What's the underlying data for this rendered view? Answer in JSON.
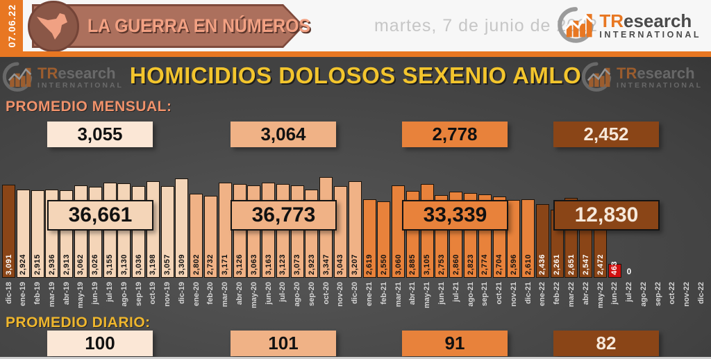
{
  "header": {
    "date_badge": "07.06.22",
    "banner_title": "LA GUERRA EN NÚMEROS",
    "date_text": "martes, 7 de junio de 2022",
    "logo": {
      "prefix": "TR",
      "suffix": "esearch",
      "subtitle": "INTERNATIONAL"
    }
  },
  "title": "HOMICIDIOS DOLOSOS SEXENIO AMLO",
  "sections": {
    "monthly_average": {
      "label": "PROMEDIO MENSUAL:",
      "boxes": [
        {
          "value": "3,055",
          "color": "cream_light"
        },
        {
          "value": "3,064",
          "color": "salmon"
        },
        {
          "value": "2,778",
          "color": "orange"
        },
        {
          "value": "2,452",
          "color": "brown"
        }
      ]
    },
    "period_totals": {
      "boxes": [
        {
          "value": "36,661",
          "color": "cream"
        },
        {
          "value": "36,773",
          "color": "salmon"
        },
        {
          "value": "33,339",
          "color": "orange"
        },
        {
          "value": "12,830",
          "color": "brown"
        }
      ]
    },
    "daily_average": {
      "label": "PROMEDIO DIARIO:",
      "boxes": [
        {
          "value": "100",
          "color": "cream_light"
        },
        {
          "value": "101",
          "color": "salmon"
        },
        {
          "value": "91",
          "color": "orange"
        },
        {
          "value": "82",
          "color": "brown"
        }
      ]
    }
  },
  "chart_data": {
    "type": "bar",
    "title": "HOMICIDIOS DOLOSOS SEXENIO AMLO",
    "ylim": [
      0,
      3347
    ],
    "legend": "none",
    "period_totals": [
      "36,661",
      "36,773",
      "33,339",
      "12,830"
    ],
    "monthly_averages": [
      "3,055",
      "3,064",
      "2,778",
      "2,452"
    ],
    "daily_averages": [
      "100",
      "101",
      "91",
      "82"
    ],
    "bars": [
      {
        "month": "dic-18",
        "value": 3091,
        "value_label": "3,091",
        "color": "brown"
      },
      {
        "month": "ene-19",
        "value": 2924,
        "value_label": "2,924",
        "color": "cream"
      },
      {
        "month": "feb-19",
        "value": 2915,
        "value_label": "2,915",
        "color": "cream"
      },
      {
        "month": "mar-19",
        "value": 2936,
        "value_label": "2,936",
        "color": "cream"
      },
      {
        "month": "abr-19",
        "value": 2913,
        "value_label": "2,913",
        "color": "cream"
      },
      {
        "month": "may-19",
        "value": 3062,
        "value_label": "3,062",
        "color": "cream"
      },
      {
        "month": "jun-19",
        "value": 3026,
        "value_label": "3,026",
        "color": "cream"
      },
      {
        "month": "jul-19",
        "value": 3155,
        "value_label": "3,155",
        "color": "cream"
      },
      {
        "month": "ago-19",
        "value": 3130,
        "value_label": "3,130",
        "color": "cream"
      },
      {
        "month": "sep-19",
        "value": 3036,
        "value_label": "3,036",
        "color": "cream"
      },
      {
        "month": "oct-19",
        "value": 3198,
        "value_label": "3,198",
        "color": "cream"
      },
      {
        "month": "nov-19",
        "value": 3057,
        "value_label": "3,057",
        "color": "cream"
      },
      {
        "month": "dic-19",
        "value": 3309,
        "value_label": "3,309",
        "color": "cream"
      },
      {
        "month": "ene-20",
        "value": 2802,
        "value_label": "2,802",
        "color": "salmon"
      },
      {
        "month": "feb-20",
        "value": 2732,
        "value_label": "2,732",
        "color": "salmon"
      },
      {
        "month": "mar-20",
        "value": 3171,
        "value_label": "3,171",
        "color": "salmon"
      },
      {
        "month": "abr-20",
        "value": 3126,
        "value_label": "3,126",
        "color": "salmon"
      },
      {
        "month": "may-20",
        "value": 3063,
        "value_label": "3,063",
        "color": "salmon"
      },
      {
        "month": "jun-20",
        "value": 3163,
        "value_label": "3,163",
        "color": "salmon"
      },
      {
        "month": "jul-20",
        "value": 3123,
        "value_label": "3,123",
        "color": "salmon"
      },
      {
        "month": "ago-20",
        "value": 3073,
        "value_label": "3,073",
        "color": "salmon"
      },
      {
        "month": "sep-20",
        "value": 2923,
        "value_label": "2,923",
        "color": "salmon"
      },
      {
        "month": "oct-20",
        "value": 3347,
        "value_label": "3,347",
        "color": "salmon"
      },
      {
        "month": "nov-20",
        "value": 3043,
        "value_label": "3,043",
        "color": "salmon"
      },
      {
        "month": "dic-20",
        "value": 3207,
        "value_label": "3,207",
        "color": "salmon"
      },
      {
        "month": "ene-21",
        "value": 2619,
        "value_label": "2,619",
        "color": "orange"
      },
      {
        "month": "feb-21",
        "value": 2550,
        "value_label": "2,550",
        "color": "orange"
      },
      {
        "month": "mar-21",
        "value": 3060,
        "value_label": "3,060",
        "color": "orange"
      },
      {
        "month": "abr-21",
        "value": 2885,
        "value_label": "2,885",
        "color": "orange"
      },
      {
        "month": "may-21",
        "value": 3105,
        "value_label": "3,105",
        "color": "orange"
      },
      {
        "month": "jun-21",
        "value": 2753,
        "value_label": "2,753",
        "color": "orange"
      },
      {
        "month": "jul-21",
        "value": 2860,
        "value_label": "2,860",
        "color": "orange"
      },
      {
        "month": "ago-21",
        "value": 2823,
        "value_label": "2,823",
        "color": "orange"
      },
      {
        "month": "sep-21",
        "value": 2774,
        "value_label": "2,774",
        "color": "orange"
      },
      {
        "month": "oct-21",
        "value": 2704,
        "value_label": "2,704",
        "color": "orange"
      },
      {
        "month": "nov-21",
        "value": 2596,
        "value_label": "2,596",
        "color": "orange"
      },
      {
        "month": "dic-21",
        "value": 2610,
        "value_label": "2,610",
        "color": "orange"
      },
      {
        "month": "ene-22",
        "value": 2436,
        "value_label": "2,436",
        "color": "brown"
      },
      {
        "month": "feb-22",
        "value": 2261,
        "value_label": "2,261",
        "color": "brown"
      },
      {
        "month": "mar-22",
        "value": 2651,
        "value_label": "2,651",
        "color": "brown"
      },
      {
        "month": "abr-22",
        "value": 2547,
        "value_label": "2,547",
        "color": "brown"
      },
      {
        "month": "may-22",
        "value": 2472,
        "value_label": "2,472",
        "color": "brown"
      },
      {
        "month": "jun-22",
        "value": 463,
        "value_label": "463",
        "color": "red"
      },
      {
        "month": "jul-22",
        "value": 0,
        "value_label": "0",
        "color": "zero"
      },
      {
        "month": "ago-22",
        "value": null,
        "value_label": "",
        "color": "none"
      },
      {
        "month": "sep-22",
        "value": null,
        "value_label": "",
        "color": "none"
      },
      {
        "month": "oct-22",
        "value": null,
        "value_label": "",
        "color": "none"
      },
      {
        "month": "nov-22",
        "value": null,
        "value_label": "",
        "color": "none"
      },
      {
        "month": "dic-22",
        "value": null,
        "value_label": "",
        "color": "none"
      }
    ]
  },
  "palette": {
    "cream": "#f4d5b8",
    "cream_light": "#fbe7d6",
    "salmon": "#f0b286",
    "orange": "#e8823b",
    "brown": "#8a4517",
    "red": "#d01010",
    "accent_orange": "#e87722",
    "gold_title": "#f3c52d",
    "dark_text": "#111111",
    "light_text": "#f6e8da"
  }
}
